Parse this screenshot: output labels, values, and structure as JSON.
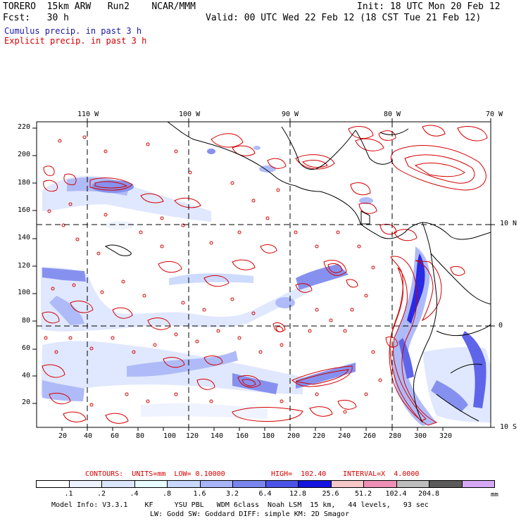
{
  "header": {
    "title_left": "TORERO  15km ARW   Run2    NCAR/MMM",
    "init": "Init: 18 UTC Mon 20 Feb 12",
    "fcst": "Fcst:   30 h",
    "valid": "Valid: 00 UTC Wed 22 Feb 12 (18 CST Tue 21 Feb 12)"
  },
  "legend": {
    "cumulus": "Cumulus precip. in past 3 h",
    "explicit": "Explicit precip. in past 3 h"
  },
  "axes": {
    "top_lon": [
      "110 W",
      "100 W",
      "90 W",
      "80 W",
      "70 W"
    ],
    "right_lat": [
      "10 N",
      "0",
      "10 S"
    ],
    "left_y": [
      "220",
      "200",
      "180",
      "160",
      "140",
      "120",
      "100",
      "80",
      "60",
      "40",
      "20"
    ],
    "bottom_x": [
      "20",
      "40",
      "60",
      "80",
      "100",
      "120",
      "140",
      "160",
      "180",
      "200",
      "220",
      "240",
      "260",
      "280",
      "300",
      "320"
    ]
  },
  "contour_info": {
    "units": "CONTOURS:  UNITS=mm  LOW= 0.10000",
    "high": "HIGH=  102.40",
    "interval": "INTERVAL=X  4.0000"
  },
  "colorbar": {
    "colors": [
      "#ffffff",
      "#eef2ff",
      "#dde6ff",
      "#e8fbff",
      "#c8d8ff",
      "#a7b4f8",
      "#7a86ee",
      "#4d55e8",
      "#1515e0",
      "#f8c8c8",
      "#ef8fb6",
      "#bdbdbd",
      "#5a5a5a",
      "#d6a8f4"
    ],
    "labels": [
      ".1",
      ".2",
      ".4",
      ".8",
      "1.6",
      "3.2",
      "6.4",
      "12.8",
      "25.6",
      "51.2",
      "102.4",
      "204.8"
    ],
    "unit": "mm"
  },
  "model_info": {
    "line1": "Model Info: V3.3.1    KF     YSU PBL   WDM 6class  Noah LSM  15 km,   44 levels,   93 sec",
    "line2": "LW: Godd SW: Goddard DIFF: simple KM: 2D Smagor"
  }
}
